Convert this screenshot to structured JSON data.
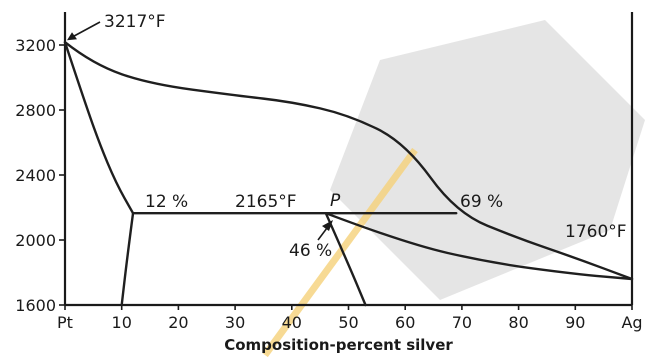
{
  "chart_data": {
    "type": "line",
    "title": "",
    "xlabel": "Composition-percent silver",
    "ylabel": "",
    "xlim": [
      0,
      100
    ],
    "ylim": [
      1600,
      3300
    ],
    "x_tick_labels": [
      "Pt",
      "10",
      "20",
      "30",
      "40",
      "50",
      "60",
      "70",
      "80",
      "90",
      "Ag"
    ],
    "x_tick_values": [
      0,
      10,
      20,
      30,
      40,
      50,
      60,
      70,
      80,
      90,
      100
    ],
    "y_ticks": [
      1600,
      2000,
      2400,
      2800,
      3200
    ],
    "series": [
      {
        "x": [
          0,
          5,
          15,
          30,
          40,
          50,
          60,
          69,
          80,
          90,
          100
        ],
        "y": [
          3217,
          3080,
          2960,
          2890,
          2850,
          2770,
          2600,
          2165,
          2010,
          1890,
          1760
        ]
      },
      {
        "x": [
          0,
          3,
          6,
          9,
          12
        ],
        "y": [
          3217,
          2900,
          2600,
          2350,
          2165
        ]
      },
      {
        "x": [
          12,
          12,
          69
        ],
        "y": [
          2165,
          2165,
          2165
        ]
      },
      {
        "x": [
          12,
          11,
          10
        ],
        "y": [
          2165,
          1900,
          1600
        ]
      },
      {
        "x": [
          46,
          60,
          75,
          90,
          100
        ],
        "y": [
          2165,
          1980,
          1860,
          1790,
          1760
        ]
      },
      {
        "x": [
          46,
          50,
          53
        ],
        "y": [
          2165,
          1850,
          1600
        ]
      }
    ],
    "annotations": {
      "melt_pt": "3217°F",
      "eutectic_temp": "2165°F",
      "melt_ag": "1760°F",
      "comp_12": "12 %",
      "comp_69": "69 %",
      "comp_46": "46 %",
      "point_p": "P"
    }
  }
}
